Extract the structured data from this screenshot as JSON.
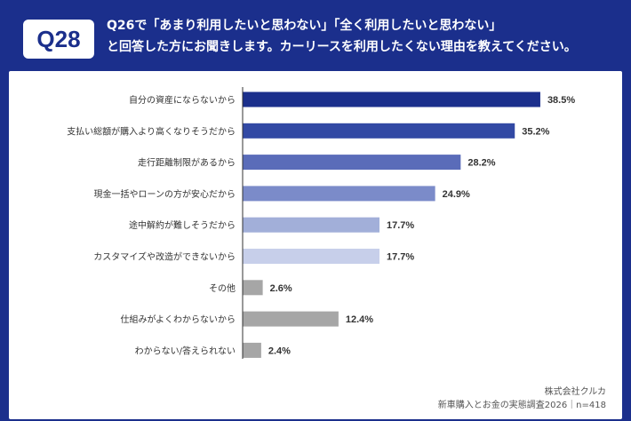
{
  "header": {
    "question_number": "Q28",
    "question_line1": "Q26で「あまり利用したいと思わない」「全く利用したいと思わない」",
    "question_line2": "と回答した方にお聞きします。カーリースを利用したくない理由を教えてください。"
  },
  "chart_data": {
    "type": "bar",
    "orientation": "horizontal",
    "categories": [
      "自分の資産にならないから",
      "支払い総額が購入より高くなりそうだから",
      "走行距離制限があるから",
      "現金一括やローンの方が安心だから",
      "途中解約が難しそうだから",
      "カスタマイズや改造ができないから",
      "その他",
      "仕組みがよくわからないから",
      "わからない/答えられない"
    ],
    "values": [
      38.5,
      35.2,
      28.2,
      24.9,
      17.7,
      17.7,
      2.6,
      12.4,
      2.4
    ],
    "value_labels": [
      "38.5%",
      "35.2%",
      "28.2%",
      "24.9%",
      "17.7%",
      "17.7%",
      "2.6%",
      "12.4%",
      "2.4%"
    ],
    "unit": "%",
    "bar_colors": [
      "#1b2f8c",
      "#3249a4",
      "#5a6cb9",
      "#7b8bc9",
      "#a2afd9",
      "#c7cfea",
      "#a6a6a6",
      "#a6a6a6",
      "#a6a6a6"
    ],
    "grid": false,
    "legend": "none"
  },
  "footer": {
    "company": "株式会社クルカ",
    "survey": "新車購入とお金の実態調査2026｜n=418"
  },
  "colors": {
    "brand_navy": "#1b2f8c",
    "panel_background": "#ffffff",
    "axis": "#333333"
  }
}
